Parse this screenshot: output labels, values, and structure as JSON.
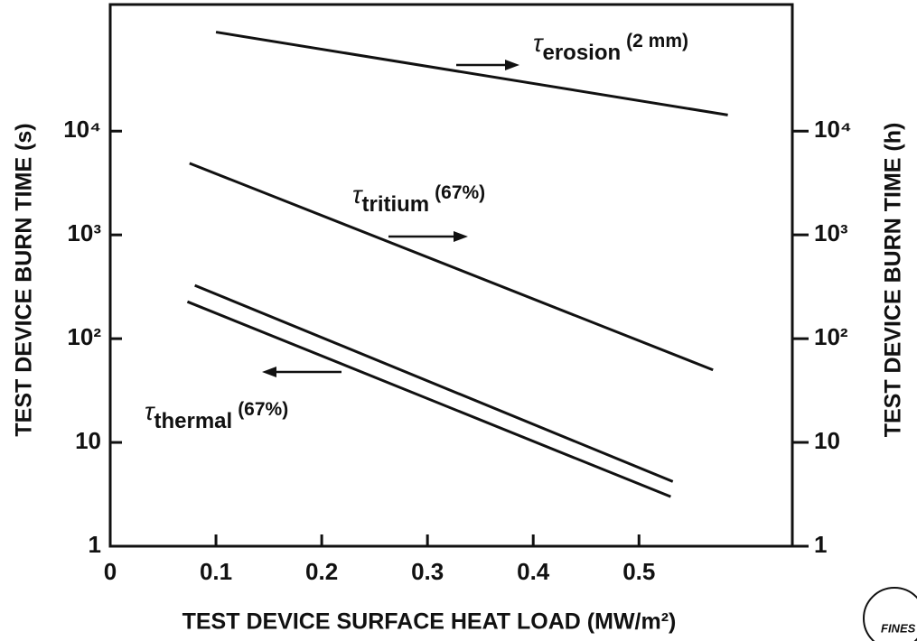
{
  "chart_data": {
    "type": "line",
    "ylabel": "TEST DEVICE BURN TIME (s)",
    "y2label": "TEST DEVICE BURN TIME (h)",
    "xlabel": "TEST DEVICE SURFACE HEAT LOAD (MW/m²)",
    "xlim": [
      0,
      0.645
    ],
    "xticks": [
      0,
      0.1,
      0.2,
      0.3,
      0.4,
      0.5
    ],
    "ylim": [
      1,
      166000
    ],
    "log_y": true,
    "yticks": [
      1,
      10,
      {
        "value": 100,
        "label": "10²"
      },
      {
        "value": 1000,
        "label": "10³"
      },
      {
        "value": 10000,
        "label": "10⁴"
      }
    ],
    "y2lim": [
      1,
      166000
    ],
    "y2ticks": [
      1,
      10,
      {
        "value": 100,
        "label": "10²"
      },
      {
        "value": 1000,
        "label": "10³"
      },
      {
        "value": 10000,
        "label": "10⁴"
      }
    ],
    "color": "#111111",
    "series": [
      {
        "axis": "y2",
        "x": [
          0.1,
          0.584
        ],
        "values": [
          90000,
          14300
        ]
      },
      {
        "axis": "y2",
        "x": [
          0.075,
          0.57
        ],
        "values": [
          4900,
          50
        ]
      },
      {
        "x": [
          0.08,
          0.532
        ],
        "values": [
          326,
          4.2
        ]
      },
      {
        "x": [
          0.073,
          0.53
        ],
        "values": [
          227,
          3.0
        ]
      }
    ],
    "annotations": [
      {
        "symbol": "τ",
        "sub": "erosion",
        "text": "(2 mm)"
      },
      {
        "symbol": "τ",
        "sub": "tritium",
        "text": "(67%)"
      },
      {
        "symbol": "τ",
        "sub": "thermal",
        "text": "(67%)"
      }
    ],
    "logo_text": "FINES"
  }
}
